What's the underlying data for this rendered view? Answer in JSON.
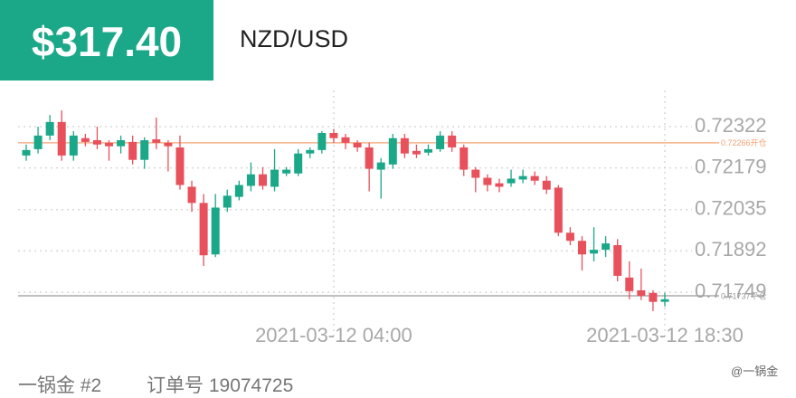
{
  "header": {
    "price": "$317.40",
    "pair": "NZD/USD"
  },
  "footer": {
    "account": "一锅金 #2",
    "order": "订单号 19074725",
    "watermark": "@一锅金"
  },
  "chart_data": {
    "type": "candlestick",
    "categories": [
      null,
      null,
      null,
      null,
      null,
      null,
      null,
      null,
      null,
      null,
      null,
      null,
      null,
      null,
      null,
      null,
      null,
      null,
      null,
      null,
      null,
      null,
      null,
      null,
      null,
      null,
      "2021-03-12 04:00",
      null,
      null,
      null,
      null,
      null,
      null,
      null,
      null,
      null,
      null,
      null,
      null,
      null,
      null,
      null,
      null,
      null,
      null,
      null,
      null,
      null,
      null,
      null,
      null,
      null,
      null,
      null,
      "2021-03-12 18:30"
    ],
    "open": [
      0.72222,
      0.72244,
      0.72291,
      0.72338,
      0.72222,
      0.72282,
      0.72275,
      0.72266,
      0.72254,
      0.72269,
      0.72207,
      0.72278,
      0.72266,
      0.7225,
      0.72114,
      0.72058,
      0.7188,
      0.72042,
      0.72079,
      0.72117,
      0.72157,
      0.72114,
      0.7216,
      0.7216,
      0.72229,
      0.72241,
      0.723,
      0.72285,
      0.72266,
      0.7225,
      0.72173,
      0.72191,
      0.72282,
      0.72238,
      0.72232,
      0.72244,
      0.72291,
      0.7225,
      0.72173,
      0.72145,
      0.72126,
      0.72126,
      0.72139,
      0.72151,
      0.72135,
      0.72111,
      0.71955,
      0.71927,
      0.71883,
      0.71896,
      0.71912,
      0.718,
      0.71756,
      0.71747,
      0.71716
    ],
    "high": [
      0.7226,
      0.72322,
      0.72362,
      0.72378,
      0.72306,
      0.72297,
      0.72322,
      0.72275,
      0.72291,
      0.72291,
      0.72285,
      0.72353,
      0.72275,
      0.72291,
      0.72135,
      0.72089,
      0.72089,
      0.72104,
      0.72135,
      0.72198,
      0.72182,
      0.72244,
      0.72182,
      0.72244,
      0.7225,
      0.72306,
      0.72313,
      0.72297,
      0.72275,
      0.72266,
      0.72213,
      0.72297,
      0.72297,
      0.7226,
      0.7226,
      0.72306,
      0.72306,
      0.7226,
      0.72182,
      0.72157,
      0.72142,
      0.72173,
      0.72173,
      0.72167,
      0.72151,
      0.7212,
      0.71974,
      0.71943,
      0.71974,
      0.71943,
      0.71933,
      0.71856,
      0.71831,
      0.71756,
      0.71747
    ],
    "low": [
      0.72204,
      0.72229,
      0.72275,
      0.72204,
      0.72204,
      0.72254,
      0.72244,
      0.72204,
      0.72229,
      0.72191,
      0.72176,
      0.72244,
      0.72167,
      0.72104,
      0.72027,
      0.7184,
      0.71871,
      0.72027,
      0.72067,
      0.72098,
      0.72104,
      0.72098,
      0.72151,
      0.72151,
      0.72213,
      0.72229,
      0.72266,
      0.72244,
      0.72235,
      0.72098,
      0.72073,
      0.72176,
      0.72213,
      0.72213,
      0.72222,
      0.72235,
      0.72235,
      0.72151,
      0.72095,
      0.72098,
      0.72095,
      0.72114,
      0.72126,
      0.7212,
      0.72089,
      0.71943,
      0.71912,
      0.71824,
      0.71856,
      0.71871,
      0.71787,
      0.71725,
      0.71722,
      0.71684,
      0.717
    ],
    "close": [
      0.72241,
      0.72291,
      0.72338,
      0.72222,
      0.72291,
      0.72269,
      0.7226,
      0.72254,
      0.72275,
      0.72207,
      0.72275,
      0.72266,
      0.72254,
      0.7212,
      0.72058,
      0.71877,
      0.72042,
      0.72083,
      0.7212,
      0.72157,
      0.72117,
      0.72173,
      0.72173,
      0.72229,
      0.72241,
      0.723,
      0.72282,
      0.72266,
      0.7225,
      0.72176,
      0.72198,
      0.72282,
      0.72229,
      0.72226,
      0.72244,
      0.72291,
      0.7225,
      0.72173,
      0.72145,
      0.7212,
      0.72114,
      0.72142,
      0.72151,
      0.72135,
      0.72104,
      0.71955,
      0.71927,
      0.7188,
      0.71896,
      0.71918,
      0.71806,
      0.71753,
      0.71737,
      0.71716,
      0.71725
    ],
    "up_color": "#1aa888",
    "down_color": "#e8505b",
    "ylim": [
      0.71665,
      0.72447
    ],
    "yticks": [
      0.72322,
      0.72179,
      0.72035,
      0.71892,
      0.71749
    ],
    "grid": true,
    "reference_lines": [
      {
        "value": 0.72266,
        "label": "0.72266开仓",
        "color": "#f2a173"
      },
      {
        "value": 0.71737,
        "label": "0.71737平仓",
        "color": "#9a9a9a"
      }
    ]
  }
}
